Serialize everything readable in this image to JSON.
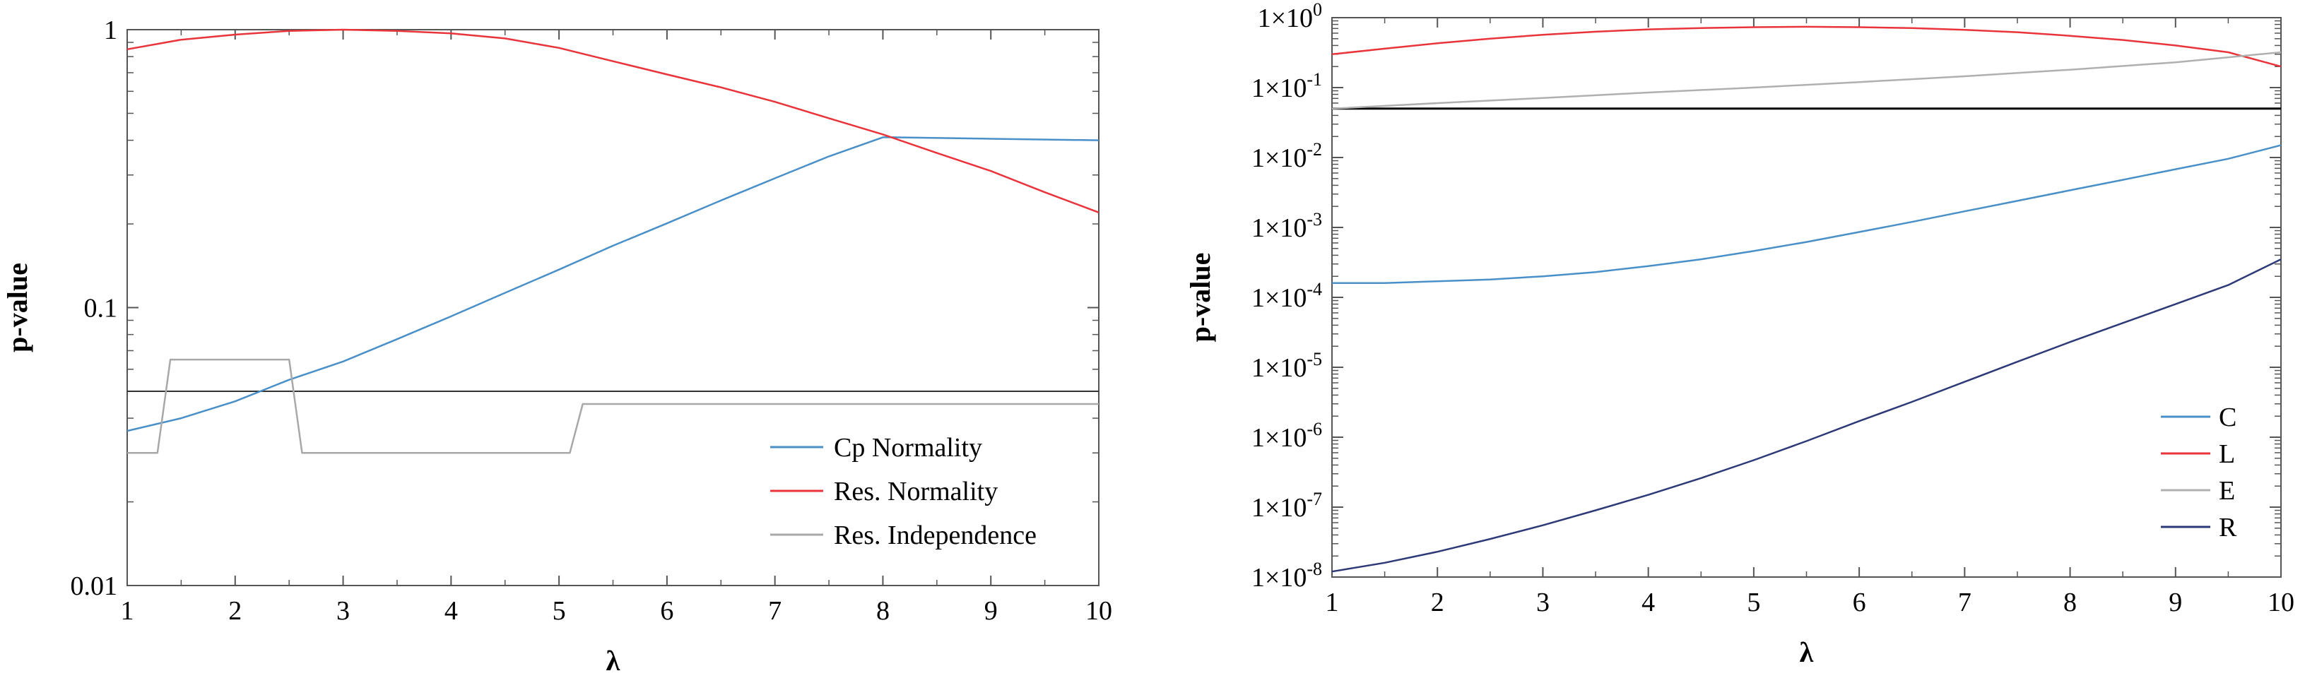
{
  "chart_data": [
    {
      "type": "line",
      "title": "",
      "xlabel": "λ",
      "ylabel": "p-value",
      "xlim": [
        1,
        10
      ],
      "ylim": [
        0.01,
        1
      ],
      "yscale": "log",
      "x_ticks": [
        1,
        2,
        3,
        4,
        5,
        6,
        7,
        8,
        9,
        10
      ],
      "x_tick_labels": [
        "1",
        "2",
        "3",
        "4",
        "5",
        "6",
        "7",
        "8",
        "9",
        "10"
      ],
      "y_ticks": [
        0.01,
        0.1,
        1
      ],
      "y_tick_labels": [
        "0.01",
        "0.1",
        "1"
      ],
      "legend_position": "bottom-right",
      "reference_lines": [
        {
          "name": "significance-level",
          "y": 0.05,
          "color": "#333333"
        }
      ],
      "series": [
        {
          "name": "Cp Normality",
          "color": "#4a90c8",
          "x": [
            1,
            1.5,
            2,
            2.5,
            3,
            3.5,
            4,
            4.5,
            5,
            5.5,
            6,
            6.5,
            7,
            7.5,
            8,
            8.1,
            9,
            10
          ],
          "values": [
            0.036,
            0.04,
            0.046,
            0.055,
            0.064,
            0.077,
            0.093,
            0.113,
            0.137,
            0.167,
            0.201,
            0.243,
            0.292,
            0.35,
            0.41,
            0.41,
            0.405,
            0.4
          ]
        },
        {
          "name": "Res. Normality",
          "color": "#e8343a",
          "x": [
            1,
            1.5,
            2,
            2.5,
            3,
            3.5,
            4,
            4.5,
            5,
            5.5,
            6,
            6.5,
            7,
            7.5,
            8,
            8.5,
            9,
            9.5,
            10
          ],
          "values": [
            0.85,
            0.92,
            0.96,
            0.99,
            1.0,
            0.99,
            0.97,
            0.93,
            0.86,
            0.77,
            0.69,
            0.62,
            0.55,
            0.48,
            0.42,
            0.36,
            0.31,
            0.26,
            0.22
          ]
        },
        {
          "name": "Res. Independence",
          "color": "#a8a8a8",
          "x": [
            1,
            1.28,
            1.4,
            2.5,
            2.62,
            5.1,
            5.22,
            10
          ],
          "values": [
            0.03,
            0.03,
            0.065,
            0.065,
            0.03,
            0.03,
            0.045,
            0.045
          ]
        }
      ]
    },
    {
      "type": "line",
      "title": "",
      "xlabel": "λ",
      "ylabel": "p-value",
      "xlim": [
        1,
        10
      ],
      "ylim": [
        1e-08,
        1
      ],
      "yscale": "log",
      "x_ticks": [
        1,
        2,
        3,
        4,
        5,
        6,
        7,
        8,
        9,
        10
      ],
      "x_tick_labels": [
        "1",
        "2",
        "3",
        "4",
        "5",
        "6",
        "7",
        "8",
        "9",
        "10"
      ],
      "y_ticks": [
        1e-08,
        1e-07,
        1e-06,
        1e-05,
        0.0001,
        0.001,
        0.01,
        0.1,
        1
      ],
      "y_tick_base": "1×10",
      "y_tick_exponents": [
        "-8",
        "-7",
        "-6",
        "-5",
        "-4",
        "-3",
        "-2",
        "-1",
        "0"
      ],
      "legend_position": "bottom-right",
      "reference_lines": [
        {
          "name": "significance-level",
          "y": 0.05,
          "color": "#000000"
        }
      ],
      "series": [
        {
          "name": "C",
          "color": "#4a90c8",
          "x": [
            1,
            1.5,
            2,
            2.5,
            3,
            3.5,
            4,
            4.5,
            5,
            5.5,
            6,
            6.5,
            7,
            7.5,
            8,
            8.5,
            9,
            9.5,
            10
          ],
          "values": [
            0.00016,
            0.00016,
            0.00017,
            0.00018,
            0.0002,
            0.00023,
            0.00028,
            0.00035,
            0.00046,
            0.00062,
            0.00086,
            0.0012,
            0.0017,
            0.0024,
            0.0034,
            0.0048,
            0.0068,
            0.0096,
            0.015
          ]
        },
        {
          "name": "L",
          "color": "#e8343a",
          "x": [
            1,
            1.5,
            2,
            2.5,
            3,
            3.5,
            4,
            4.5,
            5,
            5.5,
            6,
            6.5,
            7,
            7.5,
            8,
            8.5,
            9,
            9.5,
            10
          ],
          "values": [
            0.3,
            0.36,
            0.43,
            0.5,
            0.57,
            0.63,
            0.68,
            0.71,
            0.73,
            0.74,
            0.73,
            0.71,
            0.67,
            0.62,
            0.55,
            0.48,
            0.4,
            0.32,
            0.2
          ]
        },
        {
          "name": "E",
          "color": "#b0b0b0",
          "x": [
            1,
            2,
            3,
            4,
            5,
            6,
            7,
            8,
            9,
            10
          ],
          "values": [
            0.05,
            0.06,
            0.071,
            0.085,
            0.1,
            0.12,
            0.145,
            0.18,
            0.23,
            0.32
          ]
        },
        {
          "name": "R",
          "color": "#2e3a78",
          "x": [
            1,
            1.5,
            2,
            2.5,
            3,
            3.5,
            4,
            4.5,
            5,
            5.5,
            6,
            6.5,
            7,
            7.5,
            8,
            8.5,
            9,
            9.5,
            10
          ],
          "values": [
            1.2e-08,
            1.6e-08,
            2.3e-08,
            3.5e-08,
            5.5e-08,
            9e-08,
            1.5e-07,
            2.6e-07,
            4.7e-07,
            8.8e-07,
            1.7e-06,
            3.2e-06,
            6.2e-06,
            1.2e-05,
            2.3e-05,
            4.3e-05,
            8e-05,
            0.00015,
            0.00035
          ]
        }
      ]
    }
  ]
}
